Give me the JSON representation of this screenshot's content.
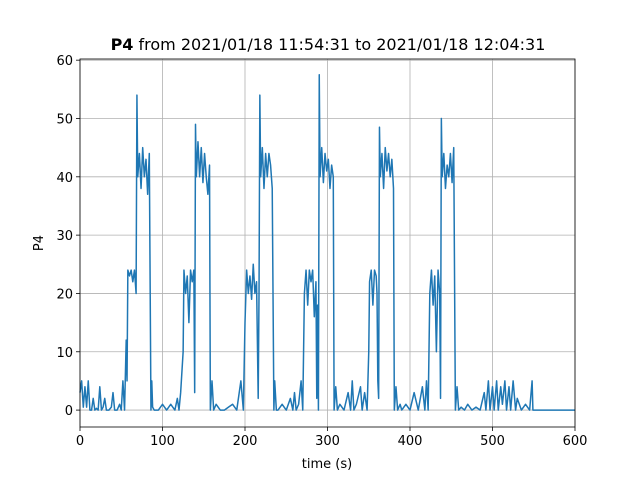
{
  "chart_data": {
    "type": "line",
    "title_variable": "P4",
    "title": "from 2021/01/18 11:54:31 to 2021/01/18 12:04:31",
    "xlabel": "time (s)",
    "ylabel": "P4",
    "xlim": [
      0,
      600
    ],
    "ylim": [
      -2.9,
      60.2
    ],
    "xticks": [
      0,
      100,
      200,
      300,
      400,
      500,
      600
    ],
    "yticks": [
      0,
      10,
      20,
      30,
      40,
      50,
      60
    ],
    "grid": true,
    "series": [
      {
        "color": "#1f77b4",
        "x": [
          0,
          2,
          4,
          6,
          8,
          10,
          12,
          14,
          16,
          18,
          20,
          22,
          24,
          26,
          28,
          30,
          32,
          35,
          38,
          40,
          42,
          45,
          48,
          50,
          52,
          54,
          56,
          57,
          58,
          60,
          62,
          64,
          66,
          68,
          69,
          70,
          72,
          74,
          76,
          78,
          80,
          82,
          84,
          86,
          87,
          88,
          90,
          95,
          100,
          105,
          110,
          115,
          118,
          120,
          122,
          125,
          126,
          128,
          130,
          132,
          134,
          136,
          138,
          139,
          140,
          141,
          143,
          145,
          147,
          149,
          151,
          153,
          155,
          157,
          158,
          160,
          162,
          165,
          170,
          175,
          180,
          185,
          190,
          195,
          198,
          200,
          202,
          204,
          206,
          208,
          210,
          212,
          214,
          216,
          217,
          218,
          219,
          221,
          223,
          225,
          227,
          229,
          231,
          233,
          235,
          236,
          238,
          240,
          245,
          250,
          255,
          258,
          260,
          262,
          265,
          268,
          270,
          272,
          274,
          276,
          278,
          280,
          282,
          284,
          286,
          287,
          288,
          289,
          290,
          291,
          293,
          295,
          297,
          299,
          301,
          303,
          305,
          307,
          308,
          310,
          312,
          315,
          320,
          325,
          328,
          330,
          332,
          335,
          340,
          342,
          345,
          348,
          350,
          351,
          353,
          355,
          357,
          359,
          360,
          361,
          362,
          363,
          364,
          366,
          368,
          370,
          372,
          374,
          376,
          378,
          380,
          381,
          383,
          385,
          388,
          390,
          395,
          400,
          405,
          410,
          415,
          418,
          420,
          422,
          424,
          426,
          428,
          430,
          432,
          434,
          436,
          437,
          438,
          439,
          441,
          443,
          445,
          447,
          449,
          451,
          453,
          455,
          457,
          459,
          462,
          466,
          470,
          475,
          480,
          485,
          490,
          492,
          495,
          497,
          500,
          502,
          505,
          507,
          510,
          512,
          515,
          517,
          520,
          522,
          525,
          528,
          530,
          535,
          540,
          545,
          548,
          549,
          555,
          600
        ],
        "values": [
          3,
          5,
          0.5,
          4,
          0.5,
          5,
          0,
          0,
          2,
          0,
          0.3,
          0,
          4,
          0,
          0.5,
          2,
          0,
          0,
          0.5,
          3,
          0,
          0,
          1,
          0,
          5,
          0,
          12,
          5,
          24,
          23,
          24,
          22,
          24,
          20,
          54,
          40,
          44,
          38,
          45,
          40,
          43,
          37,
          44,
          0,
          5,
          0.5,
          0,
          0,
          1,
          0,
          1,
          0,
          2,
          0,
          3,
          10,
          24,
          20,
          23,
          15,
          24,
          22,
          24,
          3,
          49,
          40,
          46,
          40,
          45,
          39,
          44,
          40,
          37,
          42,
          0,
          5,
          0,
          1,
          0,
          0,
          0.5,
          1,
          0,
          5,
          0,
          15,
          24,
          20,
          23,
          19,
          25,
          20,
          22,
          2,
          20,
          54,
          40,
          45,
          38,
          44,
          40,
          44,
          42,
          38,
          0,
          5,
          0,
          0,
          1,
          0,
          2,
          0,
          3,
          0,
          1,
          5,
          0,
          20,
          24,
          18,
          24,
          22,
          24,
          16,
          22,
          2,
          18,
          0,
          57.5,
          40,
          45,
          39,
          44,
          41,
          43,
          38,
          42,
          40,
          0,
          4,
          0,
          1,
          0,
          3,
          0,
          5,
          0,
          1,
          4,
          0,
          3,
          0,
          10,
          22,
          24,
          18,
          24,
          23,
          20,
          5,
          2,
          48.5,
          40,
          44,
          38,
          45,
          41,
          44,
          40,
          43,
          38,
          0,
          4,
          0,
          1,
          0,
          1,
          0,
          3,
          0,
          4,
          0,
          5,
          0,
          20,
          24,
          18,
          23,
          10,
          24,
          20,
          2,
          50,
          40,
          44,
          38,
          42,
          40,
          44,
          39,
          45,
          0,
          4,
          0,
          0.5,
          0,
          1,
          0,
          0.5,
          0,
          3,
          0,
          5,
          0,
          4,
          0,
          5,
          0,
          4,
          1,
          5,
          0,
          4,
          0,
          5,
          0,
          2,
          0,
          1,
          0,
          5,
          0,
          0,
          0
        ]
      }
    ]
  }
}
